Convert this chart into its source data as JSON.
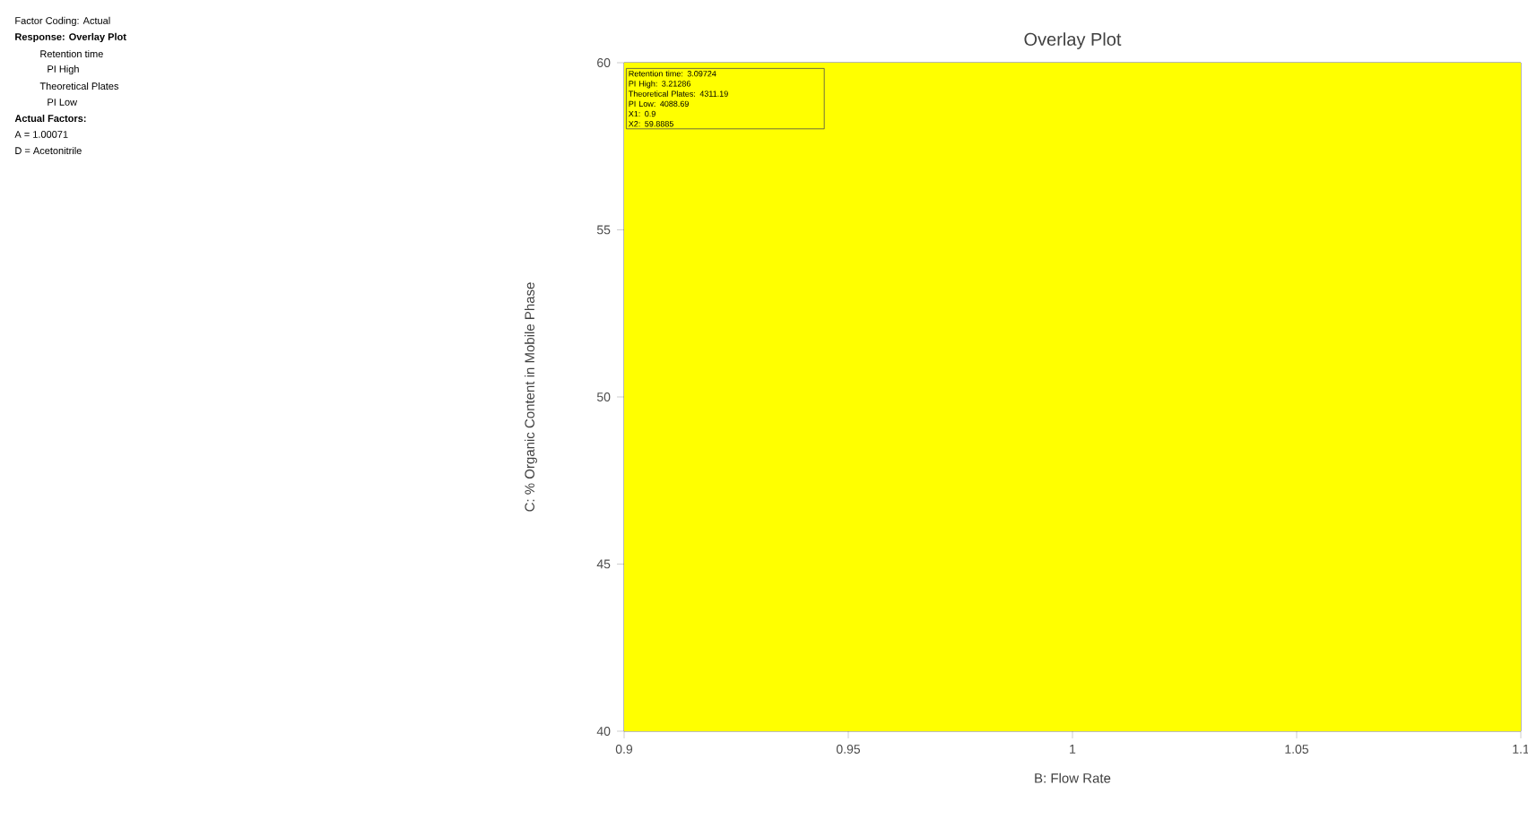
{
  "chart_data": {
    "type": "area",
    "title": "Overlay Plot",
    "xlabel": "B: Flow Rate",
    "ylabel": "C: % Organic Content in Mobile Phase",
    "bands": [
      {
        "axis": "x",
        "from": 0.9,
        "to": 1.1,
        "color": "#ffff00"
      }
    ],
    "xlim": [
      0.9,
      1.1
    ],
    "ylim": [
      40,
      60
    ],
    "xticks": [
      0.9,
      0.95,
      1,
      1.05,
      1.1
    ],
    "yticks": [
      40,
      45,
      50,
      55,
      60
    ],
    "annotations": [
      "Factor Coding: Actual",
      "Response: Overlay Plot",
      "Retention time",
      "PI High",
      "Theoretical Plates",
      "PI Low",
      "Actual Factors:",
      "A = 1.00071",
      "D = Acetonitrile",
      "Retention time: 3.09724",
      "PI High: 3.21286",
      "Theoretical Plates: 4311.19",
      "PI Low: 4088.69",
      "X1: 0.9",
      "X2: 59.8885"
    ]
  }
}
